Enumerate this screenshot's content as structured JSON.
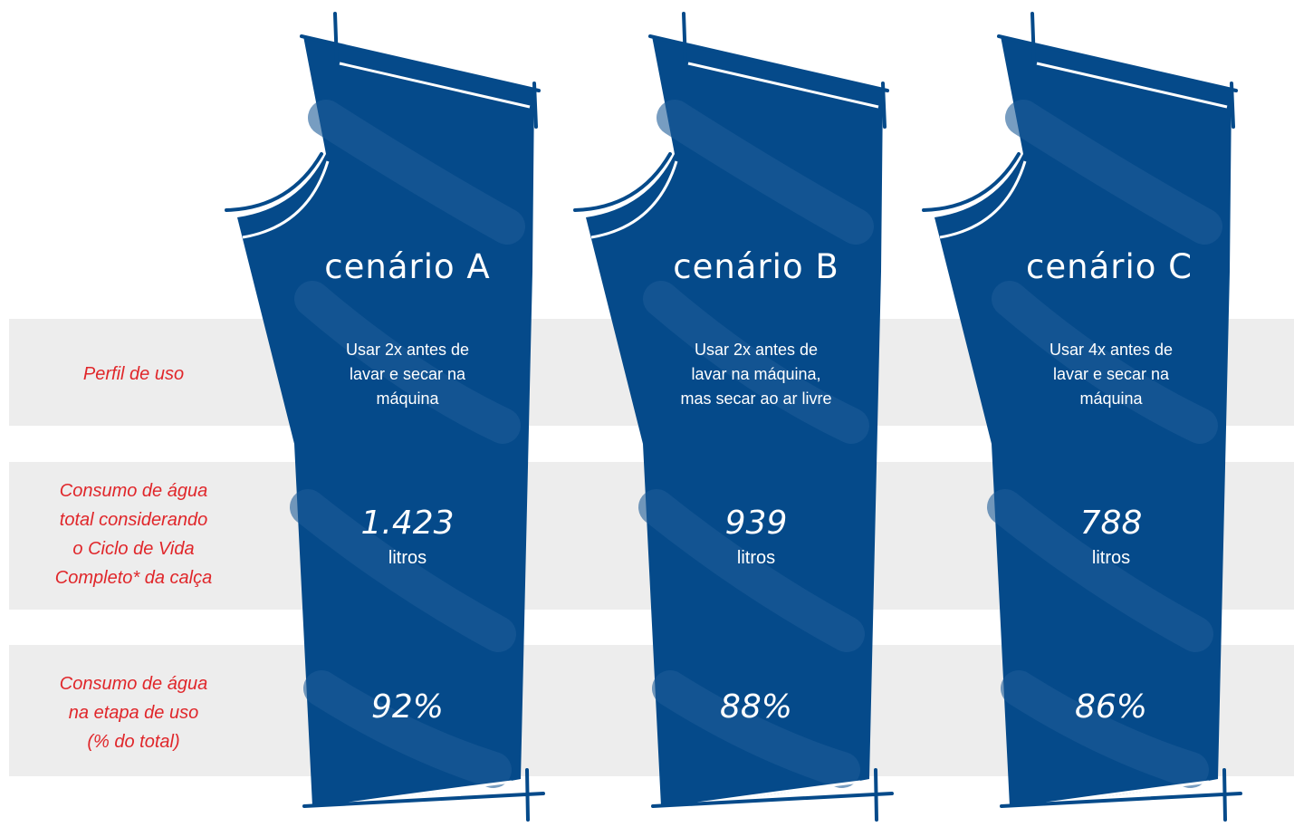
{
  "rows": {
    "perfil": "Perfil de uso",
    "consumo_total": [
      "Consumo de água",
      "total considerando",
      "o Ciclo de Vida",
      "Completo* da calça"
    ],
    "consumo_uso": [
      "Consumo de água",
      "na etapa de uso",
      "(% do total)"
    ]
  },
  "scenarios": [
    {
      "title": "cenário A",
      "profile": [
        "Usar 2x antes de",
        "lavar e secar na",
        "máquina"
      ],
      "total_value": "1.423",
      "total_unit": "litros",
      "use_pct": "92%"
    },
    {
      "title": "cenário B",
      "profile": [
        "Usar 2x antes de",
        "lavar na máquina,",
        "mas secar ao ar livre"
      ],
      "total_value": "939",
      "total_unit": "litros",
      "use_pct": "88%"
    },
    {
      "title": "cenário C",
      "profile": [
        "Usar 4x antes de",
        "lavar e secar na",
        "máquina"
      ],
      "total_value": "788",
      "total_unit": "litros",
      "use_pct": "86%"
    }
  ],
  "colors": {
    "pants": "#054a8a",
    "band": "#ededed",
    "label": "#e0262a",
    "text": "#ffffff"
  }
}
